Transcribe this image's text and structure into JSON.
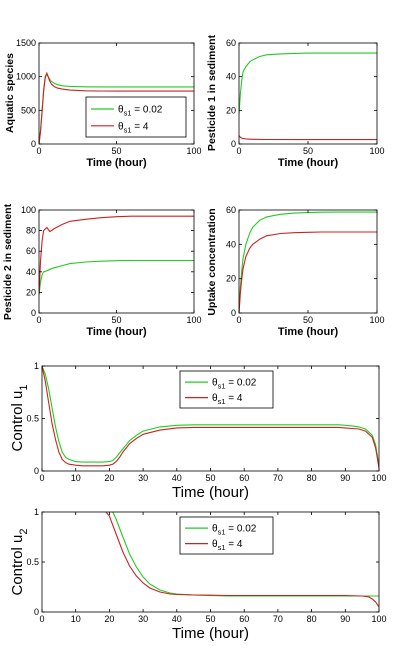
{
  "colors": {
    "green": "#22cc22",
    "red": "#cc2222"
  },
  "chart_data": [
    {
      "type": "line",
      "ylabel": "Aquatic species",
      "xlabel": "Time (hour)",
      "xlim": [
        0,
        100
      ],
      "ylim": [
        0,
        1500
      ],
      "xticks": [
        "0",
        "50",
        "100"
      ],
      "yticks": [
        "0",
        "500",
        "1000",
        "1500"
      ],
      "legend": [
        {
          "greek": "θ",
          "sub": "s1",
          "rest": " = 0.02"
        },
        {
          "greek": "θ",
          "sub": "s1",
          "rest": " = 4"
        }
      ],
      "series": [
        {
          "name": "θs1 = 0.02",
          "color": "green",
          "x": [
            0,
            1,
            2,
            3,
            4,
            5,
            6,
            7,
            8,
            10,
            12,
            15,
            20,
            30,
            40,
            50,
            60,
            70,
            80,
            90,
            100
          ],
          "y": [
            0,
            200,
            500,
            800,
            1000,
            1050,
            1000,
            960,
            930,
            900,
            880,
            865,
            855,
            850,
            848,
            848,
            848,
            848,
            848,
            848,
            848
          ]
        },
        {
          "name": "θs1 = 4",
          "color": "red",
          "x": [
            0,
            1,
            2,
            3,
            4,
            5,
            6,
            7,
            8,
            10,
            12,
            15,
            20,
            30,
            40,
            50,
            60,
            70,
            80,
            90,
            100
          ],
          "y": [
            0,
            180,
            480,
            780,
            980,
            1050,
            990,
            930,
            890,
            850,
            830,
            815,
            800,
            790,
            787,
            786,
            786,
            786,
            786,
            786,
            786
          ]
        }
      ]
    },
    {
      "type": "line",
      "ylabel": "Pesticide 1 in sediment",
      "xlabel": "Time (hour)",
      "xlim": [
        0,
        100
      ],
      "ylim": [
        0,
        60
      ],
      "xticks": [
        "0",
        "50",
        "100"
      ],
      "yticks": [
        "0",
        "20",
        "40",
        "60"
      ],
      "series": [
        {
          "name": "θs1 = 0.02",
          "color": "green",
          "x": [
            0,
            1,
            2,
            3,
            5,
            8,
            10,
            15,
            20,
            30,
            40,
            50,
            60,
            70,
            80,
            90,
            100
          ],
          "y": [
            18,
            30,
            38,
            43,
            46,
            49,
            50,
            52,
            53,
            53.5,
            53.8,
            54,
            54,
            54,
            54,
            54,
            54
          ]
        },
        {
          "name": "θs1 = 4",
          "color": "red",
          "x": [
            0,
            1,
            2,
            3,
            5,
            10,
            20,
            50,
            100
          ],
          "y": [
            5,
            4,
            3.5,
            3.2,
            3,
            2.8,
            2.7,
            2.6,
            2.6
          ]
        }
      ]
    },
    {
      "type": "line",
      "ylabel": "Pesticide 2 in sediment",
      "xlabel": "Time (hour)",
      "xlim": [
        0,
        100
      ],
      "ylim": [
        0,
        100
      ],
      "xticks": [
        "0",
        "50",
        "100"
      ],
      "yticks": [
        "0",
        "20",
        "40",
        "60",
        "80",
        "100"
      ],
      "series": [
        {
          "name": "θs1 = 0.02",
          "color": "green",
          "x": [
            0,
            1,
            2,
            3,
            5,
            8,
            10,
            15,
            20,
            30,
            40,
            50,
            60,
            70,
            80,
            90,
            100
          ],
          "y": [
            18,
            30,
            37,
            40,
            41,
            43,
            44,
            46,
            48,
            49.5,
            50.3,
            50.8,
            51,
            51,
            51,
            51,
            51
          ]
        },
        {
          "name": "θs1 = 4",
          "color": "red",
          "x": [
            0,
            1,
            2,
            3,
            5,
            7,
            10,
            15,
            20,
            30,
            40,
            50,
            60,
            70,
            80,
            90,
            100
          ],
          "y": [
            18,
            50,
            70,
            80,
            83,
            79,
            82,
            86,
            89,
            91,
            92.5,
            93.5,
            94,
            94,
            94,
            94,
            94
          ]
        }
      ]
    },
    {
      "type": "line",
      "ylabel": "Uptake concentration",
      "xlabel": "Time (hour)",
      "xlim": [
        0,
        100
      ],
      "ylim": [
        0,
        60
      ],
      "xticks": [
        "0",
        "50",
        "100"
      ],
      "yticks": [
        "0",
        "20",
        "40",
        "60"
      ],
      "series": [
        {
          "name": "θs1 = 0.02",
          "color": "green",
          "x": [
            0,
            1,
            2,
            3,
            5,
            8,
            10,
            15,
            20,
            30,
            40,
            50,
            60,
            70,
            80,
            90,
            100
          ],
          "y": [
            0,
            15,
            25,
            32,
            40,
            47,
            50,
            54,
            56,
            57.5,
            58.2,
            58.5,
            58.7,
            58.8,
            58.8,
            58.8,
            58.8
          ]
        },
        {
          "name": "θs1 = 4",
          "color": "red",
          "x": [
            0,
            1,
            2,
            3,
            5,
            8,
            10,
            15,
            20,
            30,
            40,
            50,
            60,
            70,
            80,
            90,
            100
          ],
          "y": [
            0,
            12,
            20,
            26,
            33,
            38,
            40,
            43,
            45,
            46.3,
            46.8,
            47,
            47.2,
            47.2,
            47.2,
            47.2,
            47.2
          ]
        }
      ]
    },
    {
      "type": "line",
      "ylabel_main": "Control u",
      "ylabel_sub": "1",
      "xlabel": "Time (hour)",
      "xlim": [
        0,
        100
      ],
      "ylim": [
        0,
        1
      ],
      "xticks": [
        "0",
        "10",
        "20",
        "30",
        "40",
        "50",
        "60",
        "70",
        "80",
        "90",
        "100"
      ],
      "yticks": [
        "0",
        "0.5",
        "1"
      ],
      "legend": [
        {
          "greek": "θ",
          "sub": "s1",
          "rest": " = 0.02"
        },
        {
          "greek": "θ",
          "sub": "s1",
          "rest": " = 4"
        }
      ],
      "series": [
        {
          "name": "θs1 = 0.02",
          "color": "green",
          "x": [
            0,
            1,
            2,
            3,
            4,
            5,
            6,
            7,
            8,
            9,
            10,
            12,
            15,
            18,
            20,
            21,
            22,
            23,
            24,
            25,
            26,
            28,
            30,
            35,
            40,
            45,
            50,
            55,
            60,
            65,
            70,
            75,
            80,
            85,
            88,
            90,
            92,
            94,
            96,
            98,
            99,
            100
          ],
          "y": [
            1,
            0.92,
            0.78,
            0.6,
            0.42,
            0.28,
            0.18,
            0.13,
            0.11,
            0.1,
            0.09,
            0.085,
            0.085,
            0.085,
            0.09,
            0.1,
            0.13,
            0.17,
            0.21,
            0.25,
            0.29,
            0.34,
            0.38,
            0.42,
            0.435,
            0.44,
            0.44,
            0.44,
            0.44,
            0.44,
            0.44,
            0.44,
            0.44,
            0.44,
            0.44,
            0.435,
            0.43,
            0.42,
            0.4,
            0.34,
            0.25,
            0.05
          ]
        },
        {
          "name": "θs1 = 4",
          "color": "red",
          "x": [
            0,
            1,
            2,
            3,
            4,
            5,
            6,
            7,
            8,
            9,
            10,
            12,
            15,
            18,
            20,
            21,
            22,
            23,
            24,
            25,
            26,
            28,
            30,
            35,
            40,
            45,
            50,
            55,
            60,
            65,
            70,
            75,
            80,
            85,
            88,
            90,
            92,
            94,
            96,
            98,
            99,
            100
          ],
          "y": [
            1,
            0.85,
            0.65,
            0.45,
            0.3,
            0.18,
            0.11,
            0.08,
            0.065,
            0.06,
            0.055,
            0.05,
            0.05,
            0.05,
            0.055,
            0.065,
            0.09,
            0.13,
            0.18,
            0.22,
            0.26,
            0.31,
            0.35,
            0.39,
            0.41,
            0.415,
            0.415,
            0.415,
            0.415,
            0.415,
            0.415,
            0.415,
            0.415,
            0.415,
            0.415,
            0.41,
            0.405,
            0.4,
            0.38,
            0.32,
            0.22,
            0.03
          ]
        }
      ]
    },
    {
      "type": "line",
      "ylabel_main": "Control u",
      "ylabel_sub": "2",
      "xlabel": "Time (hour)",
      "xlim": [
        0,
        100
      ],
      "ylim": [
        0,
        1
      ],
      "xticks": [
        "0",
        "10",
        "20",
        "30",
        "40",
        "50",
        "60",
        "70",
        "80",
        "90",
        "100"
      ],
      "yticks": [
        "0",
        "0.5",
        "1"
      ],
      "legend": [
        {
          "greek": "θ",
          "sub": "s1",
          "rest": " = 0.02"
        },
        {
          "greek": "θ",
          "sub": "s1",
          "rest": " = 4"
        }
      ],
      "series": [
        {
          "name": "θs1 = 0.02",
          "color": "green",
          "x": [
            21,
            22,
            24,
            26,
            28,
            30,
            32,
            35,
            38,
            40,
            45,
            50,
            55,
            60,
            65,
            70,
            75,
            80,
            85,
            90,
            95,
            97,
            98,
            99,
            100
          ],
          "y": [
            1,
            0.93,
            0.75,
            0.58,
            0.45,
            0.35,
            0.28,
            0.22,
            0.19,
            0.18,
            0.17,
            0.165,
            0.16,
            0.16,
            0.16,
            0.16,
            0.16,
            0.16,
            0.16,
            0.16,
            0.16,
            0.16,
            0.16,
            0.16,
            0.16
          ]
        },
        {
          "name": "θs1 = 4",
          "color": "red",
          "x": [
            19,
            20,
            22,
            24,
            26,
            28,
            30,
            32,
            35,
            38,
            40,
            45,
            50,
            55,
            60,
            65,
            70,
            75,
            80,
            85,
            90,
            95,
            97,
            98,
            99,
            100
          ],
          "y": [
            1,
            0.96,
            0.78,
            0.6,
            0.46,
            0.36,
            0.29,
            0.24,
            0.2,
            0.18,
            0.175,
            0.17,
            0.168,
            0.165,
            0.165,
            0.165,
            0.165,
            0.165,
            0.165,
            0.165,
            0.165,
            0.16,
            0.15,
            0.13,
            0.1,
            0.05
          ]
        }
      ]
    }
  ]
}
